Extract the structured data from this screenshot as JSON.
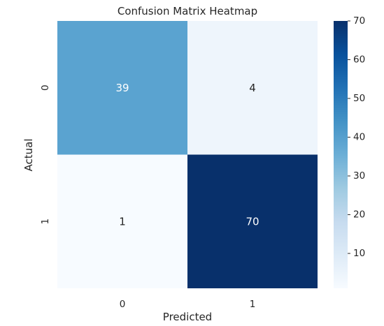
{
  "chart_data": {
    "type": "heatmap",
    "title": "Confusion Matrix Heatmap",
    "xlabel": "Predicted",
    "ylabel": "Actual",
    "x_categories": [
      "0",
      "1"
    ],
    "y_categories": [
      "0",
      "1"
    ],
    "values": [
      [
        39,
        4
      ],
      [
        1,
        70
      ]
    ],
    "colormap": "Blues",
    "colorbar": {
      "range": [
        1,
        70
      ],
      "ticks": [
        10,
        20,
        30,
        40,
        50,
        60,
        70
      ]
    },
    "annotation_colors": {
      "light": "#ffffff",
      "dark": "#262626"
    }
  }
}
